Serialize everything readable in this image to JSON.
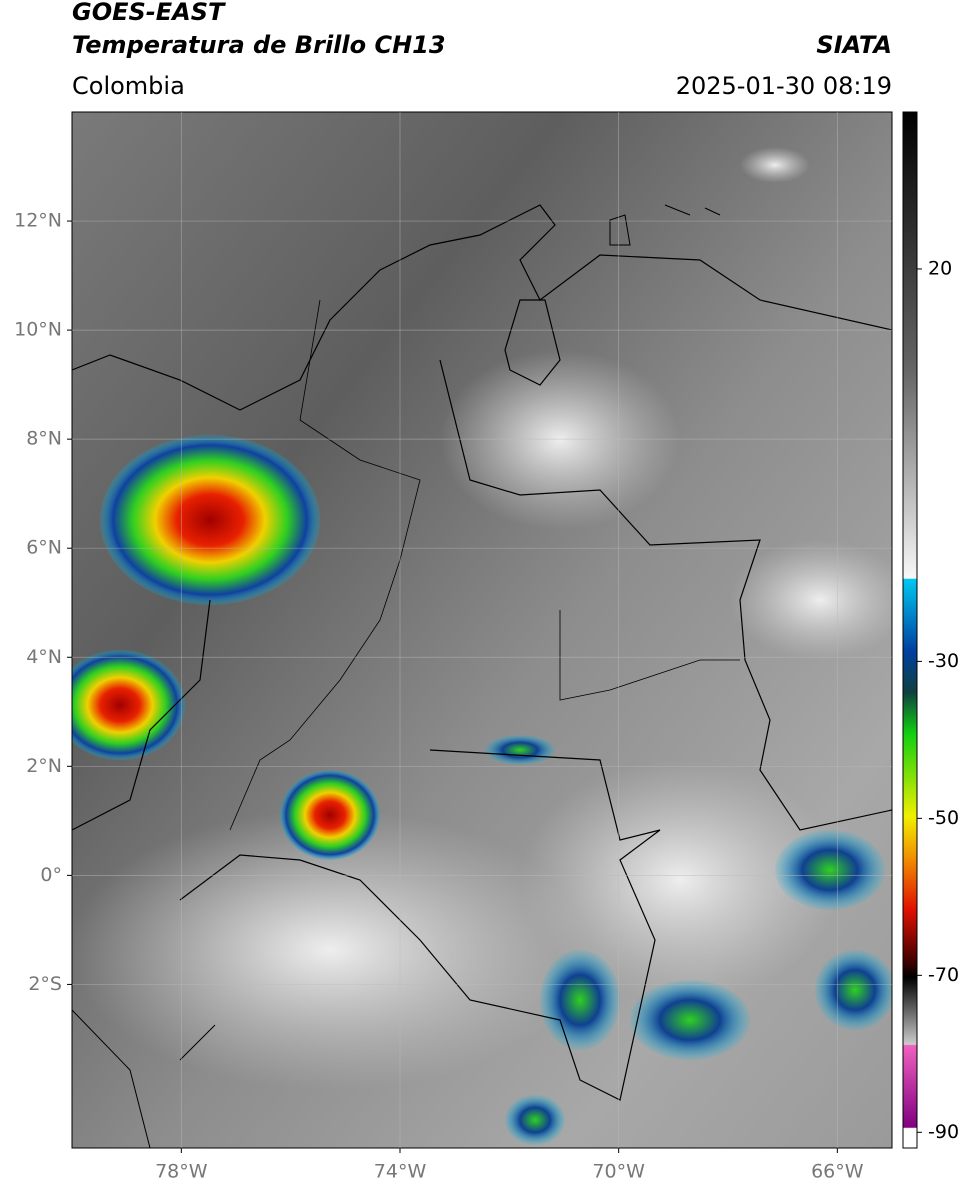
{
  "header": {
    "title_line1": "GOES-EAST",
    "title_line2": "Temperatura de Brillo CH13",
    "source": "SIATA",
    "region": "Colombia",
    "datetime": "2025-01-30 08:19"
  },
  "map": {
    "xlim": [
      -80,
      -65
    ],
    "ylim": [
      -5,
      14
    ],
    "xticks": [
      {
        "value": -78,
        "label": "78°W"
      },
      {
        "value": -74,
        "label": "74°W"
      },
      {
        "value": -70,
        "label": "70°W"
      },
      {
        "value": -66,
        "label": "66°W"
      }
    ],
    "yticks": [
      {
        "value": 12,
        "label": "12°N"
      },
      {
        "value": 10,
        "label": "10°N"
      },
      {
        "value": 8,
        "label": "8°N"
      },
      {
        "value": 6,
        "label": "6°N"
      },
      {
        "value": 4,
        "label": "4°N"
      },
      {
        "value": 2,
        "label": "2°N"
      },
      {
        "value": 0,
        "label": "0°"
      },
      {
        "value": -2,
        "label": "2°S"
      }
    ],
    "grid": true
  },
  "colorbar": {
    "lim": [
      -92,
      40
    ],
    "ticks": [
      20,
      -30,
      -50,
      -70,
      -90
    ]
  }
}
